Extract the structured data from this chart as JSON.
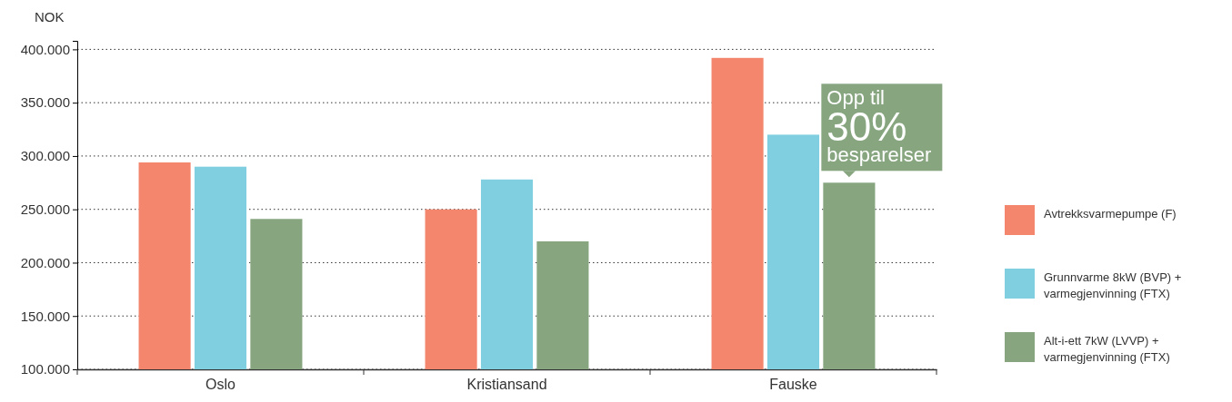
{
  "chart_data": {
    "type": "bar",
    "ylabel": "NOK",
    "categories": [
      "Oslo",
      "Kristiansand",
      "Fauske"
    ],
    "series": [
      {
        "name": "Avtrekksvarmepumpe (F)",
        "color": "#f4866e",
        "values": [
          294000,
          250000,
          392000
        ]
      },
      {
        "name": "Grunnvarme 8kW (BVP) + varmegjenvinning (FTX)",
        "color": "#7fcfe0",
        "values": [
          290000,
          278000,
          320000
        ]
      },
      {
        "name": "Alt-i-ett 7kW (LVVP) + varmegjenvinning (FTX)",
        "color": "#87a680",
        "values": [
          241000,
          220000,
          275000
        ]
      }
    ],
    "ylim": [
      100000,
      408000
    ],
    "yticks": [
      {
        "value": 100000,
        "label": "100.000"
      },
      {
        "value": 150000,
        "label": "150.000"
      },
      {
        "value": 200000,
        "label": "200.000"
      },
      {
        "value": 250000,
        "label": "250.000"
      },
      {
        "value": 300000,
        "label": "300.000"
      },
      {
        "value": 350000,
        "label": "350.000"
      },
      {
        "value": 400000,
        "label": "400.000"
      }
    ],
    "grid": "y",
    "legend": "right",
    "annotations": [
      "Opp til\n30%\nbesparelser"
    ]
  }
}
